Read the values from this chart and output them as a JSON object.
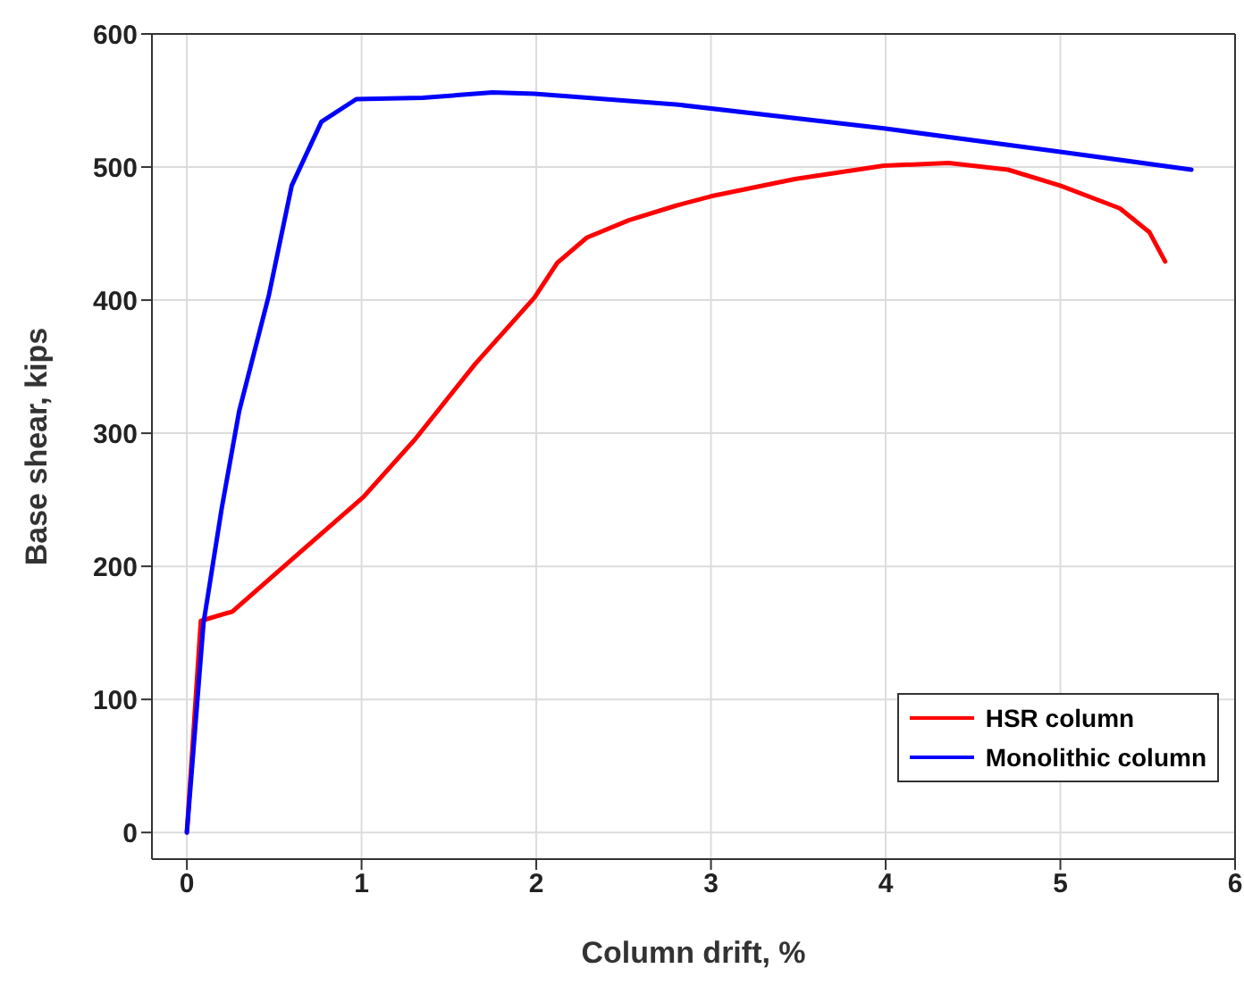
{
  "chart_data": {
    "type": "line",
    "xlabel": "Column drift, %",
    "ylabel": "Base shear, kips",
    "xlim": [
      -0.2,
      6
    ],
    "xticks": [
      0,
      1,
      2,
      3,
      4,
      5,
      6
    ],
    "ylim": [
      -20,
      600
    ],
    "yticks": [
      0,
      100,
      200,
      300,
      400,
      500,
      600
    ],
    "grid": true,
    "legend": "bottom right",
    "marker": "none",
    "line_style": "solid",
    "series": [
      {
        "name": "HSR column",
        "color": "#ff0000",
        "x": [
          0,
          0.08,
          0.26,
          0.6,
          1.01,
          1.31,
          1.65,
          1.99,
          2.12,
          2.29,
          2.53,
          2.8,
          3.0,
          3.48,
          3.99,
          4.36,
          4.7,
          5.0,
          5.34,
          5.51,
          5.6
        ],
        "values": [
          0,
          159,
          166,
          205,
          252,
          296,
          352,
          402,
          428,
          447,
          460,
          471,
          478,
          491,
          501,
          503,
          498,
          486,
          469,
          451,
          429
        ]
      },
      {
        "name": "Monolithic column",
        "color": "#0000ff",
        "x": [
          0,
          0.095,
          0.2,
          0.3,
          0.47,
          0.6,
          0.77,
          0.97,
          1.35,
          1.75,
          1.99,
          2.8,
          3.99,
          4.97,
          5.75
        ],
        "values": [
          0,
          157,
          244,
          317,
          404,
          486,
          534,
          551,
          552,
          556,
          555,
          547,
          529,
          512,
          498
        ]
      }
    ]
  }
}
